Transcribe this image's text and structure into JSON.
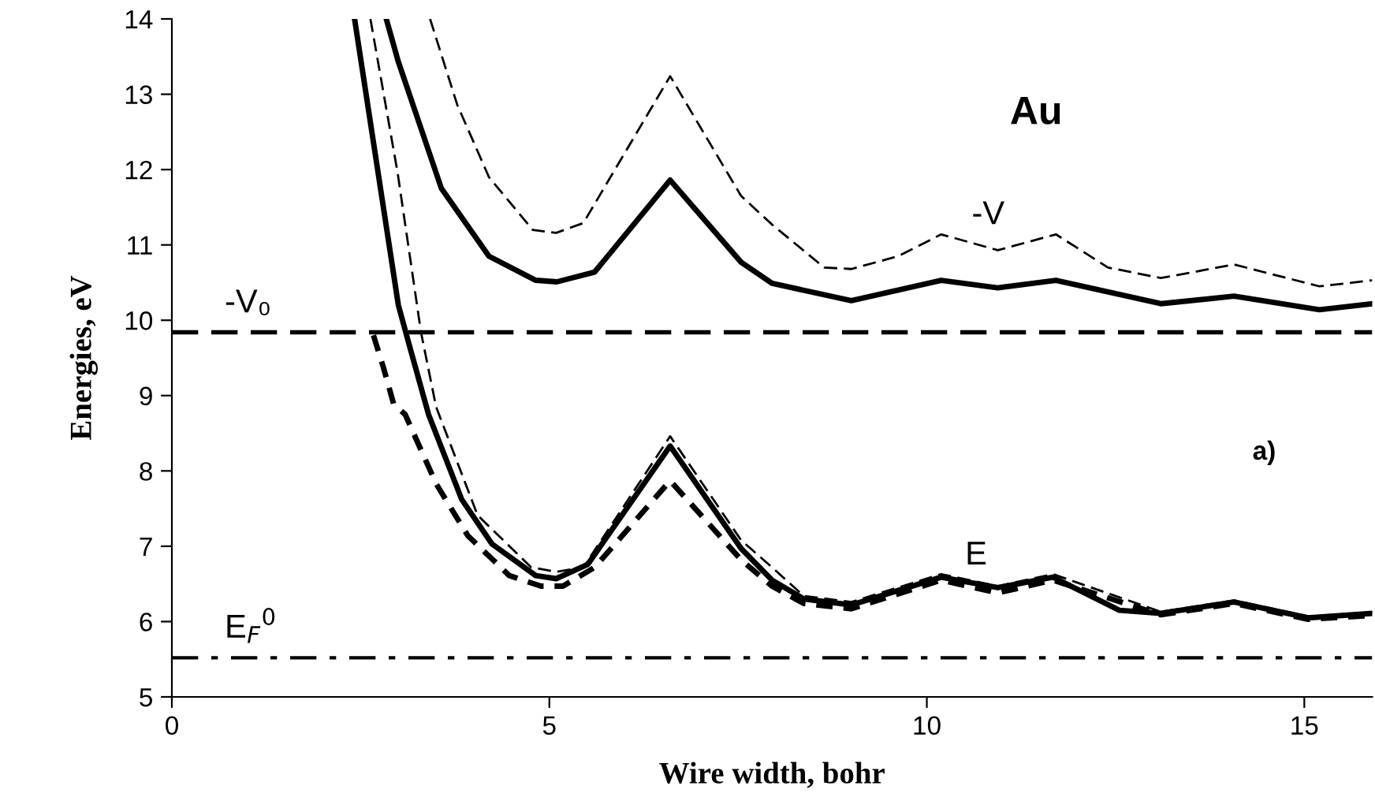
{
  "chart_data": {
    "type": "line",
    "xlabel": "Wire width, bohr",
    "ylabel": "Energies, eV",
    "xlim": [
      0,
      15.9
    ],
    "ylim": [
      5,
      14
    ],
    "xticks": [
      0,
      5,
      10,
      15
    ],
    "yticks": [
      5,
      6,
      7,
      8,
      9,
      10,
      11,
      12,
      13,
      14
    ],
    "grid": false,
    "legend": false,
    "marker": "none",
    "series": [
      {
        "color": "#000000",
        "line_style": "solid",
        "x": [
          2.84,
          3.0,
          3.57,
          4.2,
          4.82,
          5.1,
          5.6,
          6.6,
          7.54,
          7.95,
          9.0,
          10.19,
          10.94,
          11.71,
          13.1,
          14.07,
          15.2,
          15.9
        ],
        "values": [
          14.0,
          13.43,
          11.75,
          10.85,
          10.53,
          10.51,
          10.64,
          11.86,
          10.77,
          10.49,
          10.26,
          10.53,
          10.43,
          10.53,
          10.22,
          10.32,
          10.14,
          10.22
        ]
      },
      {
        "color": "#000000",
        "line_style": "dashed",
        "x": [
          3.42,
          3.78,
          4.2,
          4.78,
          5.09,
          5.45,
          6.6,
          7.54,
          7.95,
          8.64,
          9.0,
          9.62,
          10.19,
          10.94,
          11.71,
          12.4,
          13.1,
          14.07,
          15.2,
          15.9
        ],
        "values": [
          14.0,
          12.86,
          11.9,
          11.2,
          11.16,
          11.29,
          13.24,
          11.65,
          11.27,
          10.7,
          10.68,
          10.85,
          11.14,
          10.93,
          11.14,
          10.7,
          10.56,
          10.74,
          10.45,
          10.53
        ]
      },
      {
        "color": "#000000",
        "line_style": "solid",
        "x": [
          2.42,
          3.0,
          3.15,
          3.4,
          3.84,
          4.24,
          4.82,
          5.09,
          5.51,
          6.6,
          7.54,
          7.95,
          8.37,
          9.0,
          10.19,
          10.94,
          11.67,
          12.55,
          13.1,
          14.07,
          15.05,
          15.9
        ],
        "values": [
          14.0,
          10.2,
          9.65,
          8.75,
          7.62,
          7.03,
          6.61,
          6.57,
          6.76,
          8.33,
          6.97,
          6.55,
          6.3,
          6.22,
          6.59,
          6.45,
          6.59,
          6.15,
          6.11,
          6.26,
          6.05,
          6.11
        ]
      },
      {
        "color": "#000000",
        "line_style": "dashed",
        "x": [
          2.63,
          2.99,
          3.3,
          3.5,
          4.05,
          4.76,
          5.09,
          5.45,
          6.6,
          7.54,
          7.95,
          8.37,
          9.0,
          10.19,
          10.94,
          11.67,
          13.1,
          14.07,
          15.05,
          15.9
        ],
        "values": [
          14.0,
          11.96,
          9.84,
          8.85,
          7.41,
          6.72,
          6.66,
          6.72,
          8.46,
          7.08,
          6.72,
          6.34,
          6.26,
          6.63,
          6.47,
          6.63,
          6.13,
          6.28,
          6.07,
          6.12
        ]
      },
      {
        "color": "#000000",
        "line_style": "dotted",
        "x": [
          2.67,
          2.8,
          2.94,
          3.09,
          3.5,
          3.92,
          4.47,
          4.89,
          5.18,
          5.6,
          6.6,
          7.54,
          7.95,
          8.37,
          9.0,
          10.19,
          10.94,
          11.67,
          13.1,
          14.07,
          15.05,
          15.9
        ],
        "values": [
          9.8,
          9.38,
          8.88,
          8.75,
          7.83,
          7.14,
          6.61,
          6.47,
          6.47,
          6.72,
          7.87,
          6.82,
          6.47,
          6.24,
          6.17,
          6.55,
          6.38,
          6.55,
          6.09,
          6.24,
          6.03,
          6.08
        ]
      }
    ],
    "ref_lines": [
      {
        "axis": "y",
        "value": 9.84,
        "label": "-V₀",
        "color": "#000000",
        "line_style": "dashed"
      },
      {
        "axis": "y",
        "value": 5.52,
        "label": "E$_{F}$$^{0}$",
        "color": "#000000",
        "line_style": "dashdot"
      }
    ],
    "annotations": [
      "Au",
      "-V",
      "E",
      "a)"
    ]
  }
}
